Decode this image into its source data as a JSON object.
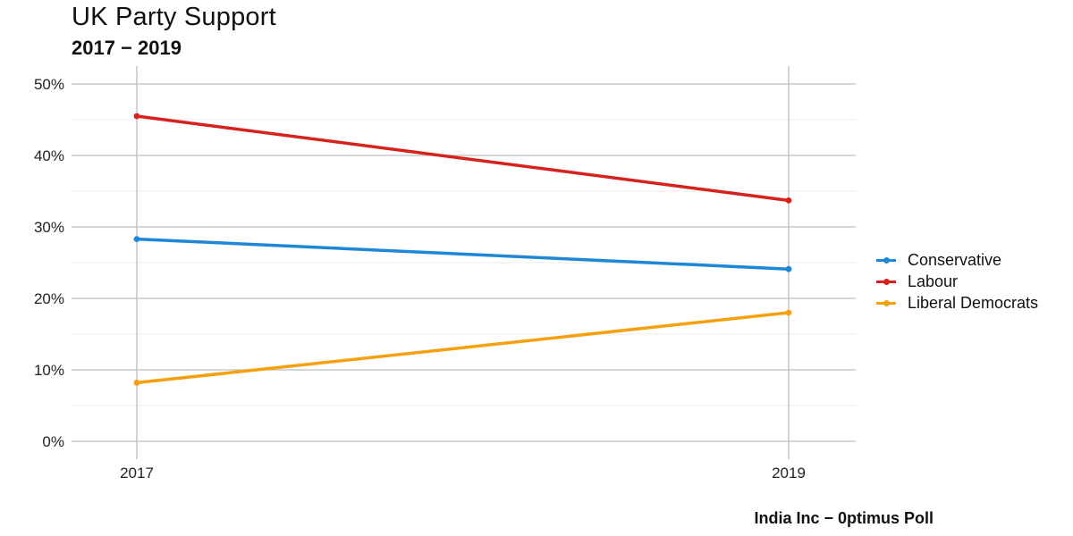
{
  "chart_data": {
    "type": "line",
    "title": "UK Party Support",
    "subtitle": "2017 − 2019",
    "caption": "India Inc − 0ptimus Poll",
    "xlabel": "",
    "ylabel": "",
    "x": [
      "2017",
      "2019"
    ],
    "ylim": [
      0,
      50
    ],
    "y_ticks": [
      "0%",
      "10%",
      "20%",
      "30%",
      "40%",
      "50%"
    ],
    "grid": true,
    "legend_position": "right",
    "series": [
      {
        "name": "Conservative",
        "color": "#1e88d6",
        "values": [
          28.3,
          24.1
        ]
      },
      {
        "name": "Labour",
        "color": "#d8201c",
        "values": [
          45.5,
          33.7
        ]
      },
      {
        "name": "Liberal Democrats",
        "color": "#f5a00f",
        "values": [
          8.2,
          18.0
        ]
      }
    ]
  }
}
